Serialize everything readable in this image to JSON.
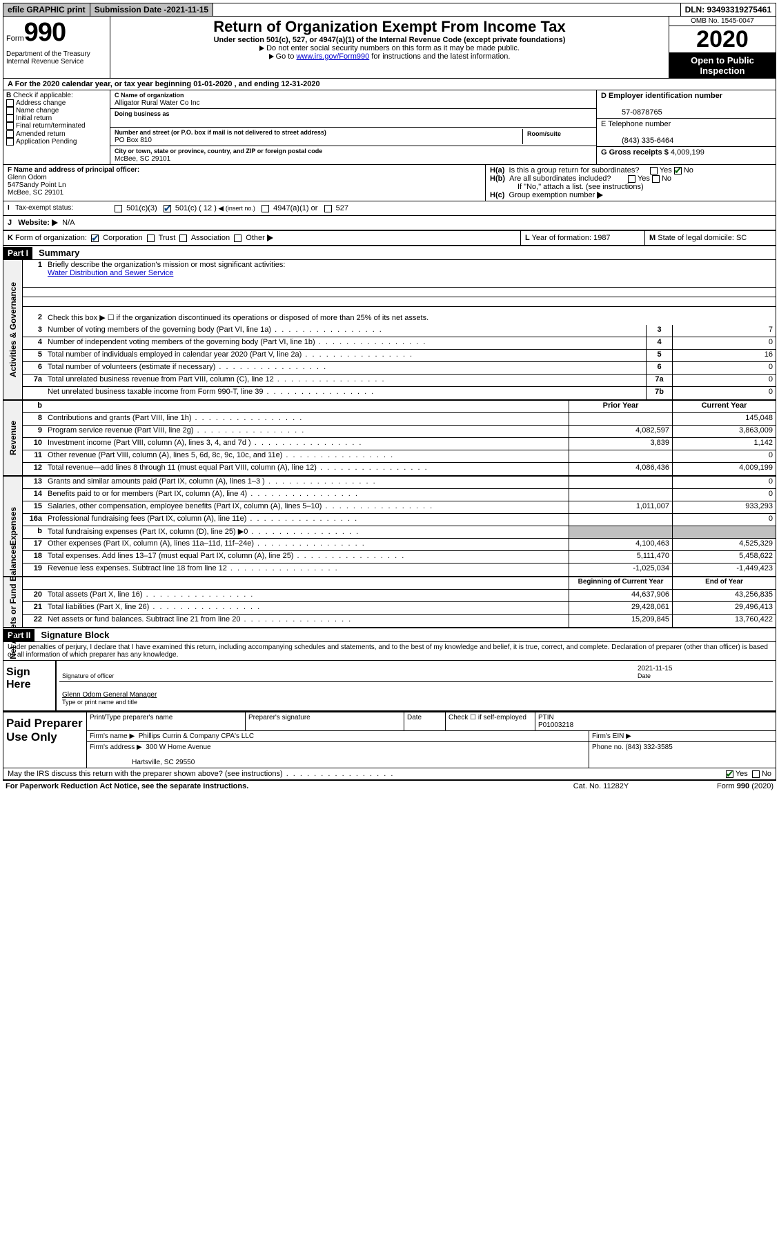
{
  "topbar": {
    "efile": "efile GRAPHIC print",
    "submission_label": "Submission Date - ",
    "submission_date": "2021-11-15",
    "dln": "DLN: 93493319275461"
  },
  "header": {
    "form_word": "Form",
    "form_num": "990",
    "dept": "Department of the Treasury\nInternal Revenue Service",
    "title": "Return of Organization Exempt From Income Tax",
    "subtitle": "Under section 501(c), 527, or 4947(a)(1) of the Internal Revenue Code (except private foundations)",
    "instr1": "Do not enter social security numbers on this form as it may be made public.",
    "instr2_pre": "Go to ",
    "instr2_link": "www.irs.gov/Form990",
    "instr2_post": " for instructions and the latest information.",
    "omb": "OMB No. 1545-0047",
    "year": "2020",
    "open": "Open to Public Inspection"
  },
  "rowA": "For the 2020 calendar year, or tax year beginning 01-01-2020    , and ending 12-31-2020",
  "checkB": {
    "title": "Check if applicable:",
    "items": [
      "Address change",
      "Name change",
      "Initial return",
      "Final return/terminated",
      "Amended return",
      "Application Pending"
    ]
  },
  "entity": {
    "name_label": "C Name of organization",
    "name": "Alligator Rural Water Co Inc",
    "dba_label": "Doing business as",
    "street_label": "Number and street (or P.O. box if mail is not delivered to street address)",
    "room_label": "Room/suite",
    "street": "PO Box 810",
    "city_label": "City or town, state or province, country, and ZIP or foreign postal code",
    "city": "McBee, SC  29101",
    "ein_label": "D Employer identification number",
    "ein": "57-0878765",
    "phone_label": "E Telephone number",
    "phone": "(843) 335-6464",
    "gross_label": "G Gross receipts $ ",
    "gross": "4,009,199"
  },
  "officerF": {
    "label": "F  Name and address of principal officer:",
    "name": "Glenn Odom",
    "addr1": "547Sandy Point Ln",
    "addr2": "McBee, SC  29101"
  },
  "groupH": {
    "ha": "Is this a group return for subordinates?",
    "hb": "Are all subordinates included?",
    "hb_note": "If \"No,\" attach a list. (see instructions)",
    "hc": "Group exemption number",
    "yes": "Yes",
    "no": "No"
  },
  "taxStatus": {
    "label": "Tax-exempt status:",
    "c3": "501(c)(3)",
    "c_pre": "501(c) ( ",
    "c_num": "12",
    "c_post": " ) ",
    "c_insert": "(insert no.)",
    "a1": "4947(a)(1) or",
    "s527": "527"
  },
  "website": {
    "label": "Website:",
    "value": "N/A"
  },
  "formK": {
    "label": "Form of organization:",
    "corp": "Corporation",
    "trust": "Trust",
    "assoc": "Association",
    "other": "Other"
  },
  "L": {
    "label": "Year of formation: ",
    "value": "1987"
  },
  "M": {
    "label": "State of legal domicile: ",
    "value": "SC"
  },
  "part1": {
    "hdr": "Part I",
    "title": "Summary"
  },
  "sections": {
    "gov": "Activities & Governance",
    "rev": "Revenue",
    "exp": "Expenses",
    "net": "Net Assets or Fund Balances"
  },
  "summary": {
    "line1_label": "Briefly describe the organization's mission or most significant activities:",
    "line1_value": "Water Distribution and Sewer Service",
    "line2": "Check this box ▶ ☐  if the organization discontinued its operations or disposed of more than 25% of its net assets.",
    "lines_a": [
      {
        "n": "3",
        "t": "Number of voting members of the governing body (Part VI, line 1a)",
        "c": "3",
        "v": "7"
      },
      {
        "n": "4",
        "t": "Number of independent voting members of the governing body (Part VI, line 1b)",
        "c": "4",
        "v": "0"
      },
      {
        "n": "5",
        "t": "Total number of individuals employed in calendar year 2020 (Part V, line 2a)",
        "c": "5",
        "v": "16"
      },
      {
        "n": "6",
        "t": "Total number of volunteers (estimate if necessary)",
        "c": "6",
        "v": "0"
      },
      {
        "n": "7a",
        "t": "Total unrelated business revenue from Part VIII, column (C), line 12",
        "c": "7a",
        "v": "0"
      },
      {
        "n": "",
        "t": "Net unrelated business taxable income from Form 990-T, line 39",
        "c": "7b",
        "v": "0"
      }
    ],
    "col_hdr_b": "b",
    "col_prior": "Prior Year",
    "col_current": "Current Year",
    "rev": [
      {
        "n": "8",
        "t": "Contributions and grants (Part VIII, line 1h)",
        "p": "",
        "c": "145,048"
      },
      {
        "n": "9",
        "t": "Program service revenue (Part VIII, line 2g)",
        "p": "4,082,597",
        "c": "3,863,009"
      },
      {
        "n": "10",
        "t": "Investment income (Part VIII, column (A), lines 3, 4, and 7d )",
        "p": "3,839",
        "c": "1,142"
      },
      {
        "n": "11",
        "t": "Other revenue (Part VIII, column (A), lines 5, 6d, 8c, 9c, 10c, and 11e)",
        "p": "",
        "c": "0"
      },
      {
        "n": "12",
        "t": "Total revenue—add lines 8 through 11 (must equal Part VIII, column (A), line 12)",
        "p": "4,086,436",
        "c": "4,009,199"
      }
    ],
    "exp": [
      {
        "n": "13",
        "t": "Grants and similar amounts paid (Part IX, column (A), lines 1–3 )",
        "p": "",
        "c": "0"
      },
      {
        "n": "14",
        "t": "Benefits paid to or for members (Part IX, column (A), line 4)",
        "p": "",
        "c": "0"
      },
      {
        "n": "15",
        "t": "Salaries, other compensation, employee benefits (Part IX, column (A), lines 5–10)",
        "p": "1,011,007",
        "c": "933,293"
      },
      {
        "n": "16a",
        "t": "Professional fundraising fees (Part IX, column (A), line 11e)",
        "p": "",
        "c": "0"
      },
      {
        "n": "b",
        "t": "Total fundraising expenses (Part IX, column (D), line 25) ▶0",
        "p": "GREY",
        "c": "GREY"
      },
      {
        "n": "17",
        "t": "Other expenses (Part IX, column (A), lines 11a–11d, 11f–24e)",
        "p": "4,100,463",
        "c": "4,525,329"
      },
      {
        "n": "18",
        "t": "Total expenses. Add lines 13–17 (must equal Part IX, column (A), line 25)",
        "p": "5,111,470",
        "c": "5,458,622"
      },
      {
        "n": "19",
        "t": "Revenue less expenses. Subtract line 18 from line 12",
        "p": "-1,025,034",
        "c": "-1,449,423"
      }
    ],
    "col_begin": "Beginning of Current Year",
    "col_end": "End of Year",
    "net": [
      {
        "n": "20",
        "t": "Total assets (Part X, line 16)",
        "p": "44,637,906",
        "c": "43,256,835"
      },
      {
        "n": "21",
        "t": "Total liabilities (Part X, line 26)",
        "p": "29,428,061",
        "c": "29,496,413"
      },
      {
        "n": "22",
        "t": "Net assets or fund balances. Subtract line 21 from line 20",
        "p": "15,209,845",
        "c": "13,760,422"
      }
    ]
  },
  "part2": {
    "hdr": "Part II",
    "title": "Signature Block"
  },
  "perjury": "Under penalties of perjury, I declare that I have examined this return, including accompanying schedules and statements, and to the best of my knowledge and belief, it is true, correct, and complete. Declaration of preparer (other than officer) is based on all information of which preparer has any knowledge.",
  "sign": {
    "label": "Sign Here",
    "sig_of_officer": "Signature of officer",
    "date": "Date",
    "date_val": "2021-11-15",
    "name": "Glenn Odom  General Manager",
    "name_label": "Type or print name and title"
  },
  "prep": {
    "label": "Paid Preparer Use Only",
    "print_name": "Print/Type preparer's name",
    "prep_sig": "Preparer's signature",
    "date": "Date",
    "check_self": "Check ☐ if self-employed",
    "ptin_label": "PTIN",
    "ptin": "P01003218",
    "firm_name_label": "Firm's name    ▶",
    "firm_name": "Phillips Currin & Company CPA's LLC",
    "firm_ein_label": "Firm's EIN ▶",
    "firm_addr_label": "Firm's address ▶",
    "firm_addr1": "300 W Home Avenue",
    "firm_addr2": "Hartsville, SC  29550",
    "phone_label": "Phone no. ",
    "phone": "(843) 332-3585"
  },
  "discuss": "May the IRS discuss this return with the preparer shown above? (see instructions)",
  "footer": {
    "left": "For Paperwork Reduction Act Notice, see the separate instructions.",
    "mid": "Cat. No. 11282Y",
    "right": "Form 990 (2020)"
  }
}
